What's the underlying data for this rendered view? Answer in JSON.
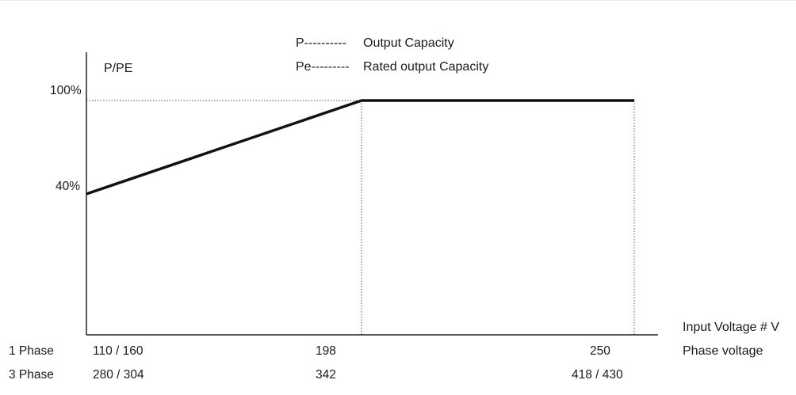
{
  "chart_data": {
    "type": "line",
    "ylabel": "P/PE",
    "legend": [
      {
        "symbol": "P----------",
        "text": "Output Capacity"
      },
      {
        "symbol": "Pe---------",
        "text": "Rated output Capacity"
      }
    ],
    "y_ticks": [
      "100%",
      "40%"
    ],
    "y_values": [
      100,
      40
    ],
    "x_axis_title": "Input Voltage # V",
    "x_rows": [
      {
        "label": "1 Phase",
        "unit": "Phase voltage",
        "ticks": [
          "110 / 160",
          "198",
          "250"
        ]
      },
      {
        "label": "3 Phase",
        "unit": "",
        "ticks": [
          "280 / 304",
          "342",
          "418 / 430"
        ]
      }
    ],
    "x_positions": [
      0,
      1,
      2
    ],
    "series": [
      {
        "points": [
          [
            0,
            40
          ],
          [
            1,
            100
          ],
          [
            2,
            100
          ]
        ]
      }
    ],
    "ylim": [
      0,
      100
    ]
  },
  "colors": {
    "line": "#111111",
    "axis": "#222222",
    "dotted": "#555555"
  }
}
